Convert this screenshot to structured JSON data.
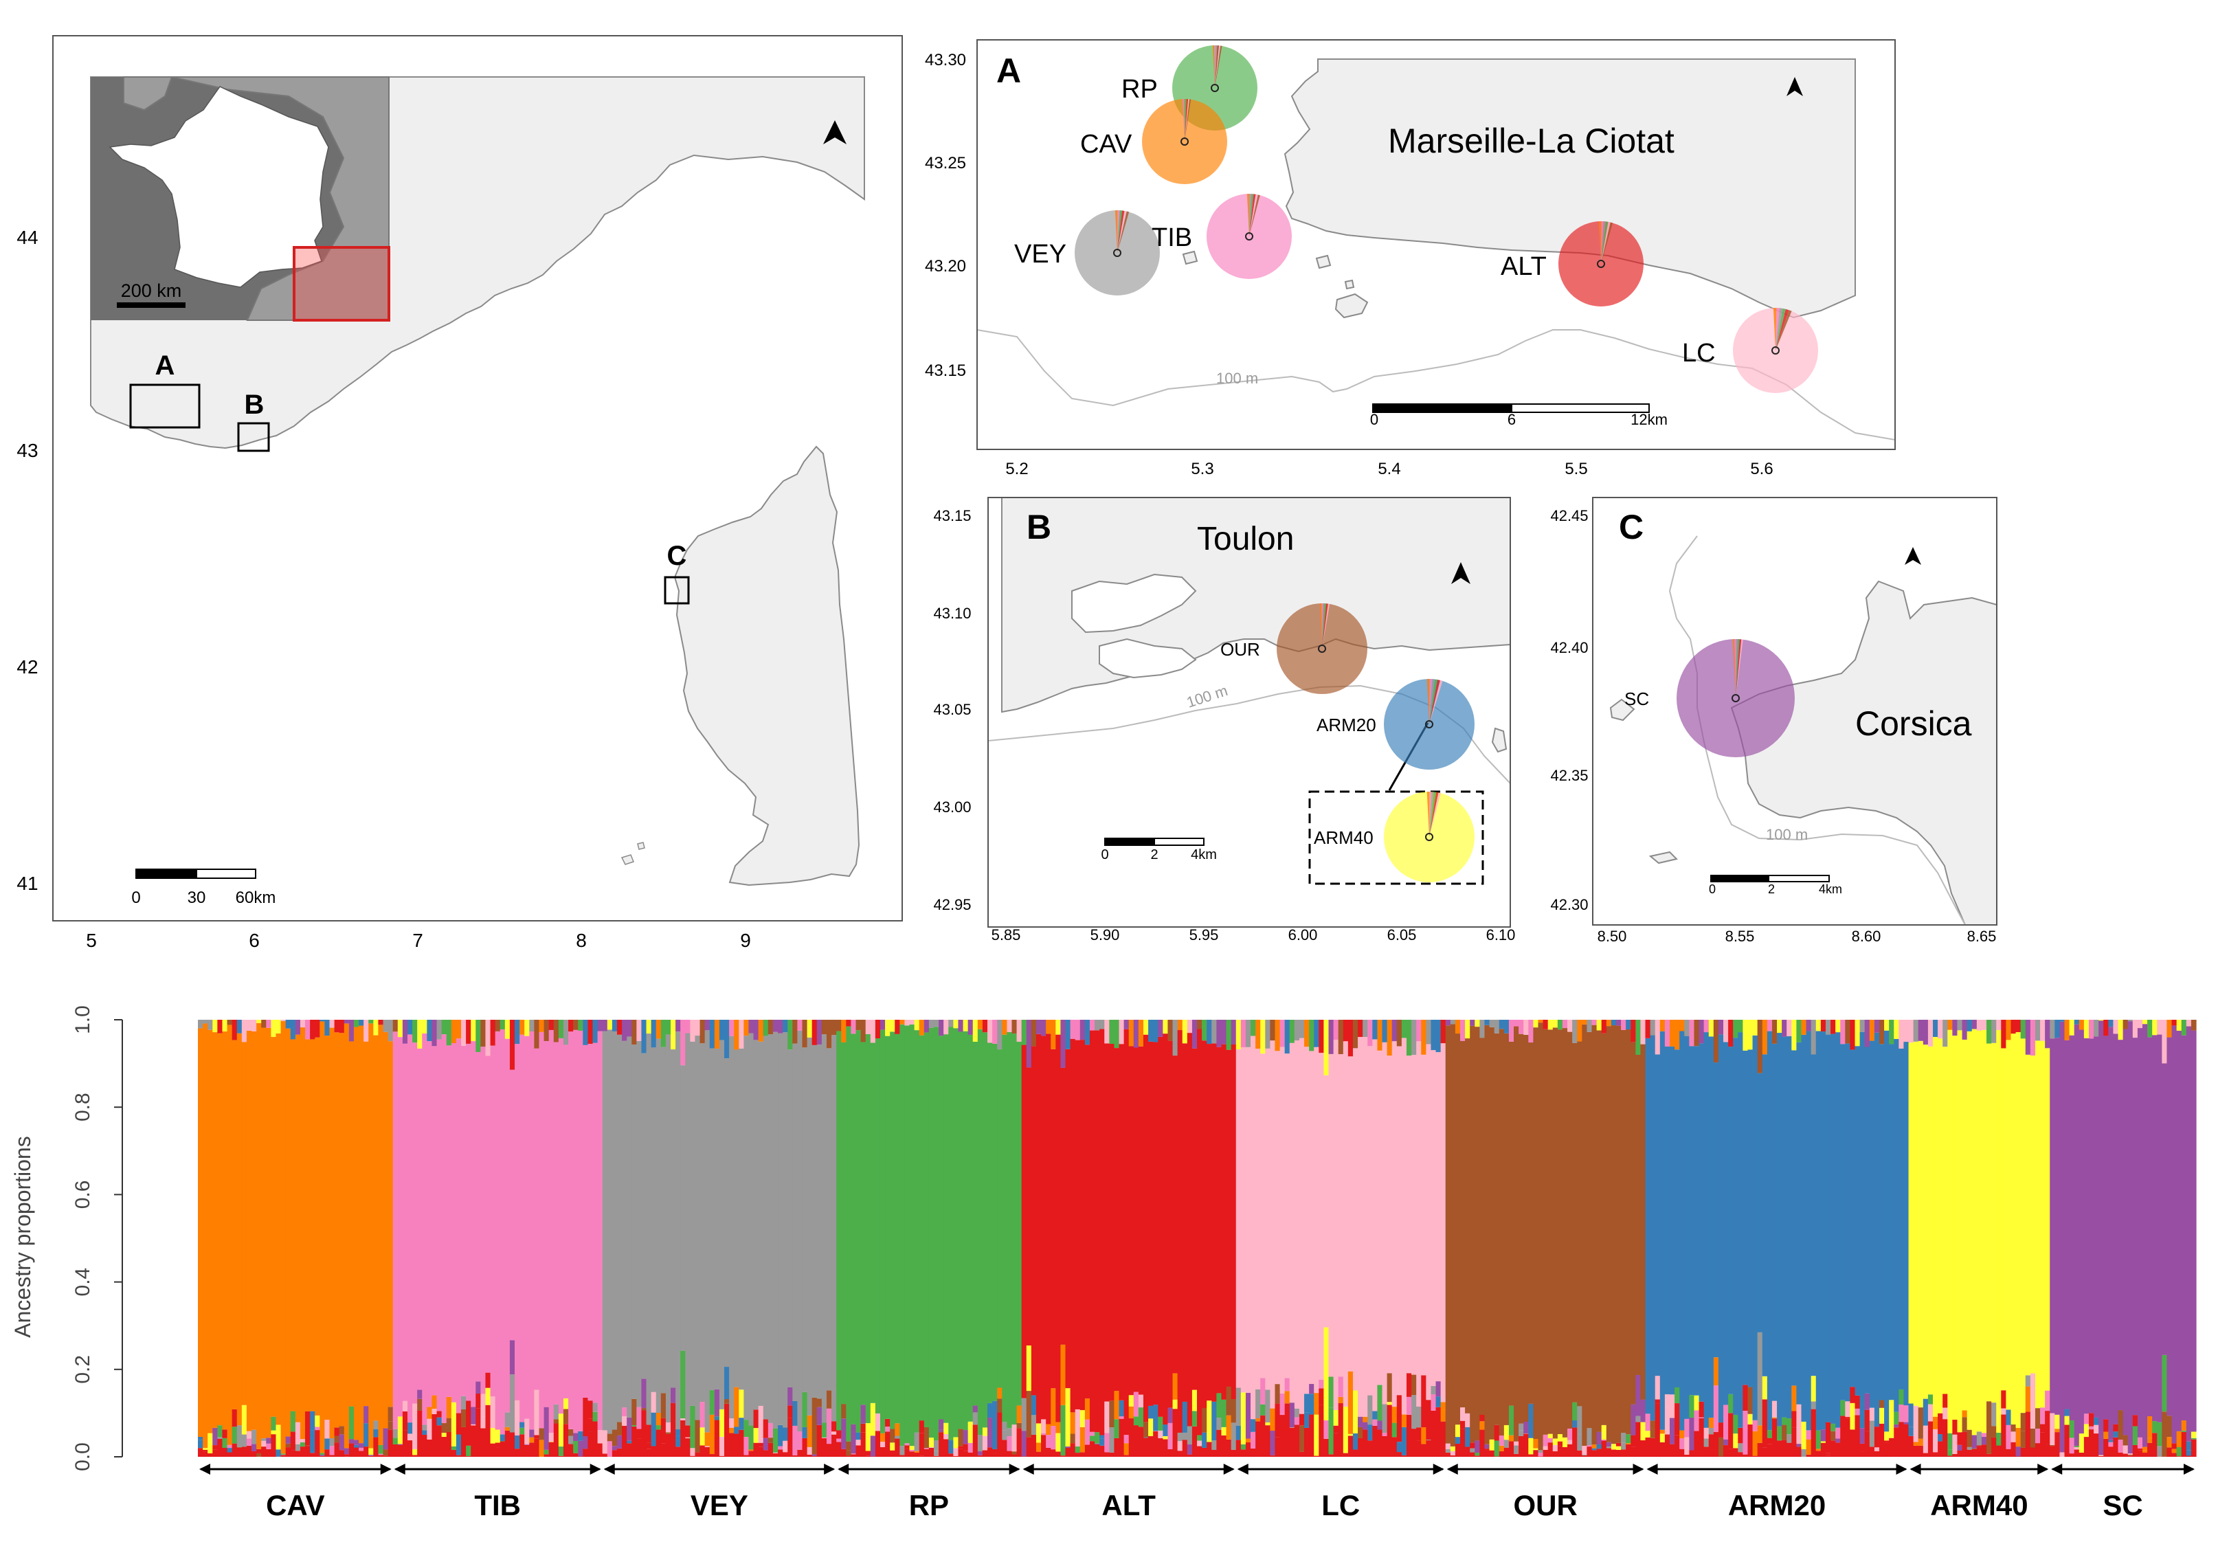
{
  "colors": {
    "CAV": "#ff7f00",
    "TIB": "#f781bf",
    "VEY": "#999999",
    "RP": "#4daf4a",
    "ALT": "#e41a1c",
    "LC": "#ffb6c8",
    "OUR": "#a65628",
    "ARM20": "#377eb8",
    "ARM40": "#ffff33",
    "SC": "#984ea3",
    "land": "#efefef",
    "coast": "#8a8a8a",
    "frame": "#555555",
    "inset_sea": "#6f6f6f",
    "inset_land": "#9c9c9c"
  },
  "overview": {
    "y_ticks": [
      "44",
      "43",
      "42",
      "41"
    ],
    "x_ticks": [
      "5",
      "6",
      "7",
      "8",
      "9"
    ],
    "box_labels": [
      "A",
      "B",
      "C"
    ],
    "inset_scale": "200 km",
    "scale_labels": [
      "0",
      "30",
      "60km"
    ],
    "north": "north-arrow-icon"
  },
  "panel_a": {
    "letter": "A",
    "title": "Marseille-La Ciotat",
    "y_ticks": [
      "43.30",
      "43.25",
      "43.20",
      "43.15"
    ],
    "x_ticks": [
      "5.2",
      "5.3",
      "5.4",
      "5.5",
      "5.6"
    ],
    "contour": "100 m",
    "scale_labels": [
      "0",
      "6",
      "12km"
    ],
    "sites": [
      "RP",
      "CAV",
      "TIB",
      "VEY",
      "ALT",
      "LC"
    ]
  },
  "panel_b": {
    "letter": "B",
    "title": "Toulon",
    "y_ticks": [
      "43.15",
      "43.10",
      "43.05",
      "43.00",
      "42.95"
    ],
    "x_ticks": [
      "5.85",
      "5.90",
      "5.95",
      "6.00",
      "6.05",
      "6.10"
    ],
    "contour": "100 m",
    "scale_labels": [
      "0",
      "2",
      "4km"
    ],
    "sites": [
      "OUR",
      "ARM20",
      "ARM40"
    ]
  },
  "panel_c": {
    "letter": "C",
    "title": "Corsica",
    "y_ticks": [
      "42.45",
      "42.40",
      "42.35",
      "42.30"
    ],
    "x_ticks": [
      "8.50",
      "8.55",
      "8.60",
      "8.65"
    ],
    "contour": "100 m",
    "scale_labels": [
      "0",
      "2",
      "4km"
    ],
    "sites": [
      "SC"
    ]
  },
  "chart_data": {
    "type": "bar",
    "subtype": "stacked admixture (STRUCTURE) plot",
    "ylabel": "Ancestry proportions",
    "ylim": [
      0,
      1
    ],
    "y_ticks": [
      "0.0",
      "0.2",
      "0.4",
      "0.6",
      "0.8",
      "1.0"
    ],
    "populations": [
      {
        "name": "CAV",
        "n": 40,
        "main_cluster": "CAV",
        "mean_main_proportion": 0.91
      },
      {
        "name": "TIB",
        "n": 43,
        "main_cluster": "TIB",
        "mean_main_proportion": 0.86
      },
      {
        "name": "VEY",
        "n": 48,
        "main_cluster": "VEY",
        "mean_main_proportion": 0.85
      },
      {
        "name": "RP",
        "n": 38,
        "main_cluster": "RP",
        "mean_main_proportion": 0.9
      },
      {
        "name": "ALT",
        "n": 44,
        "main_cluster": "ALT",
        "mean_main_proportion": 0.85
      },
      {
        "name": "LC",
        "n": 43,
        "main_cluster": "LC",
        "mean_main_proportion": 0.8
      },
      {
        "name": "OUR",
        "n": 41,
        "main_cluster": "OUR",
        "mean_main_proportion": 0.9
      },
      {
        "name": "ARM20",
        "n": 54,
        "main_cluster": "ARM20",
        "mean_main_proportion": 0.84
      },
      {
        "name": "ARM40",
        "n": 29,
        "main_cluster": "ARM40",
        "mean_main_proportion": 0.86
      },
      {
        "name": "SC",
        "n": 30,
        "main_cluster": "SC",
        "mean_main_proportion": 0.92
      }
    ],
    "clusters": [
      "CAV",
      "TIB",
      "VEY",
      "RP",
      "ALT",
      "LC",
      "OUR",
      "ARM20",
      "ARM40",
      "SC"
    ]
  }
}
